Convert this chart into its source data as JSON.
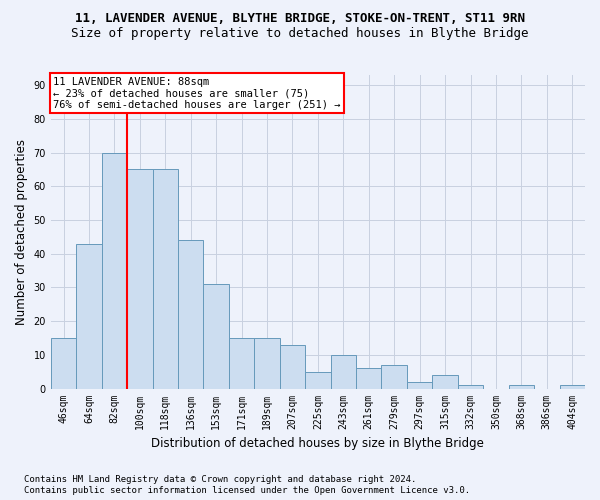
{
  "title_line1": "11, LAVENDER AVENUE, BLYTHE BRIDGE, STOKE-ON-TRENT, ST11 9RN",
  "title_line2": "Size of property relative to detached houses in Blythe Bridge",
  "xlabel": "Distribution of detached houses by size in Blythe Bridge",
  "ylabel": "Number of detached properties",
  "categories": [
    "46sqm",
    "64sqm",
    "82sqm",
    "100sqm",
    "118sqm",
    "136sqm",
    "153sqm",
    "171sqm",
    "189sqm",
    "207sqm",
    "225sqm",
    "243sqm",
    "261sqm",
    "279sqm",
    "297sqm",
    "315sqm",
    "332sqm",
    "350sqm",
    "368sqm",
    "386sqm",
    "404sqm"
  ],
  "values": [
    15,
    43,
    70,
    65,
    65,
    44,
    31,
    15,
    15,
    13,
    5,
    10,
    6,
    7,
    2,
    4,
    1,
    0,
    1,
    0,
    1
  ],
  "bar_color": "#ccddf0",
  "bar_edge_color": "#6699bb",
  "annotation_line1": "11 LAVENDER AVENUE: 88sqm",
  "annotation_line2": "← 23% of detached houses are smaller (75)",
  "annotation_line3": "76% of semi-detached houses are larger (251) →",
  "annotation_box_color": "white",
  "annotation_box_edge_color": "red",
  "vline_color": "red",
  "vline_x": 2.5,
  "ylim": [
    0,
    93
  ],
  "yticks": [
    0,
    10,
    20,
    30,
    40,
    50,
    60,
    70,
    80,
    90
  ],
  "footnote1": "Contains HM Land Registry data © Crown copyright and database right 2024.",
  "footnote2": "Contains public sector information licensed under the Open Government Licence v3.0.",
  "bg_color": "#eef2fb",
  "grid_color": "#c8d0e0",
  "title_fontsize": 9,
  "subtitle_fontsize": 9,
  "axis_label_fontsize": 8.5,
  "tick_fontsize": 7,
  "annotation_fontsize": 7.5,
  "footnote_fontsize": 6.5
}
